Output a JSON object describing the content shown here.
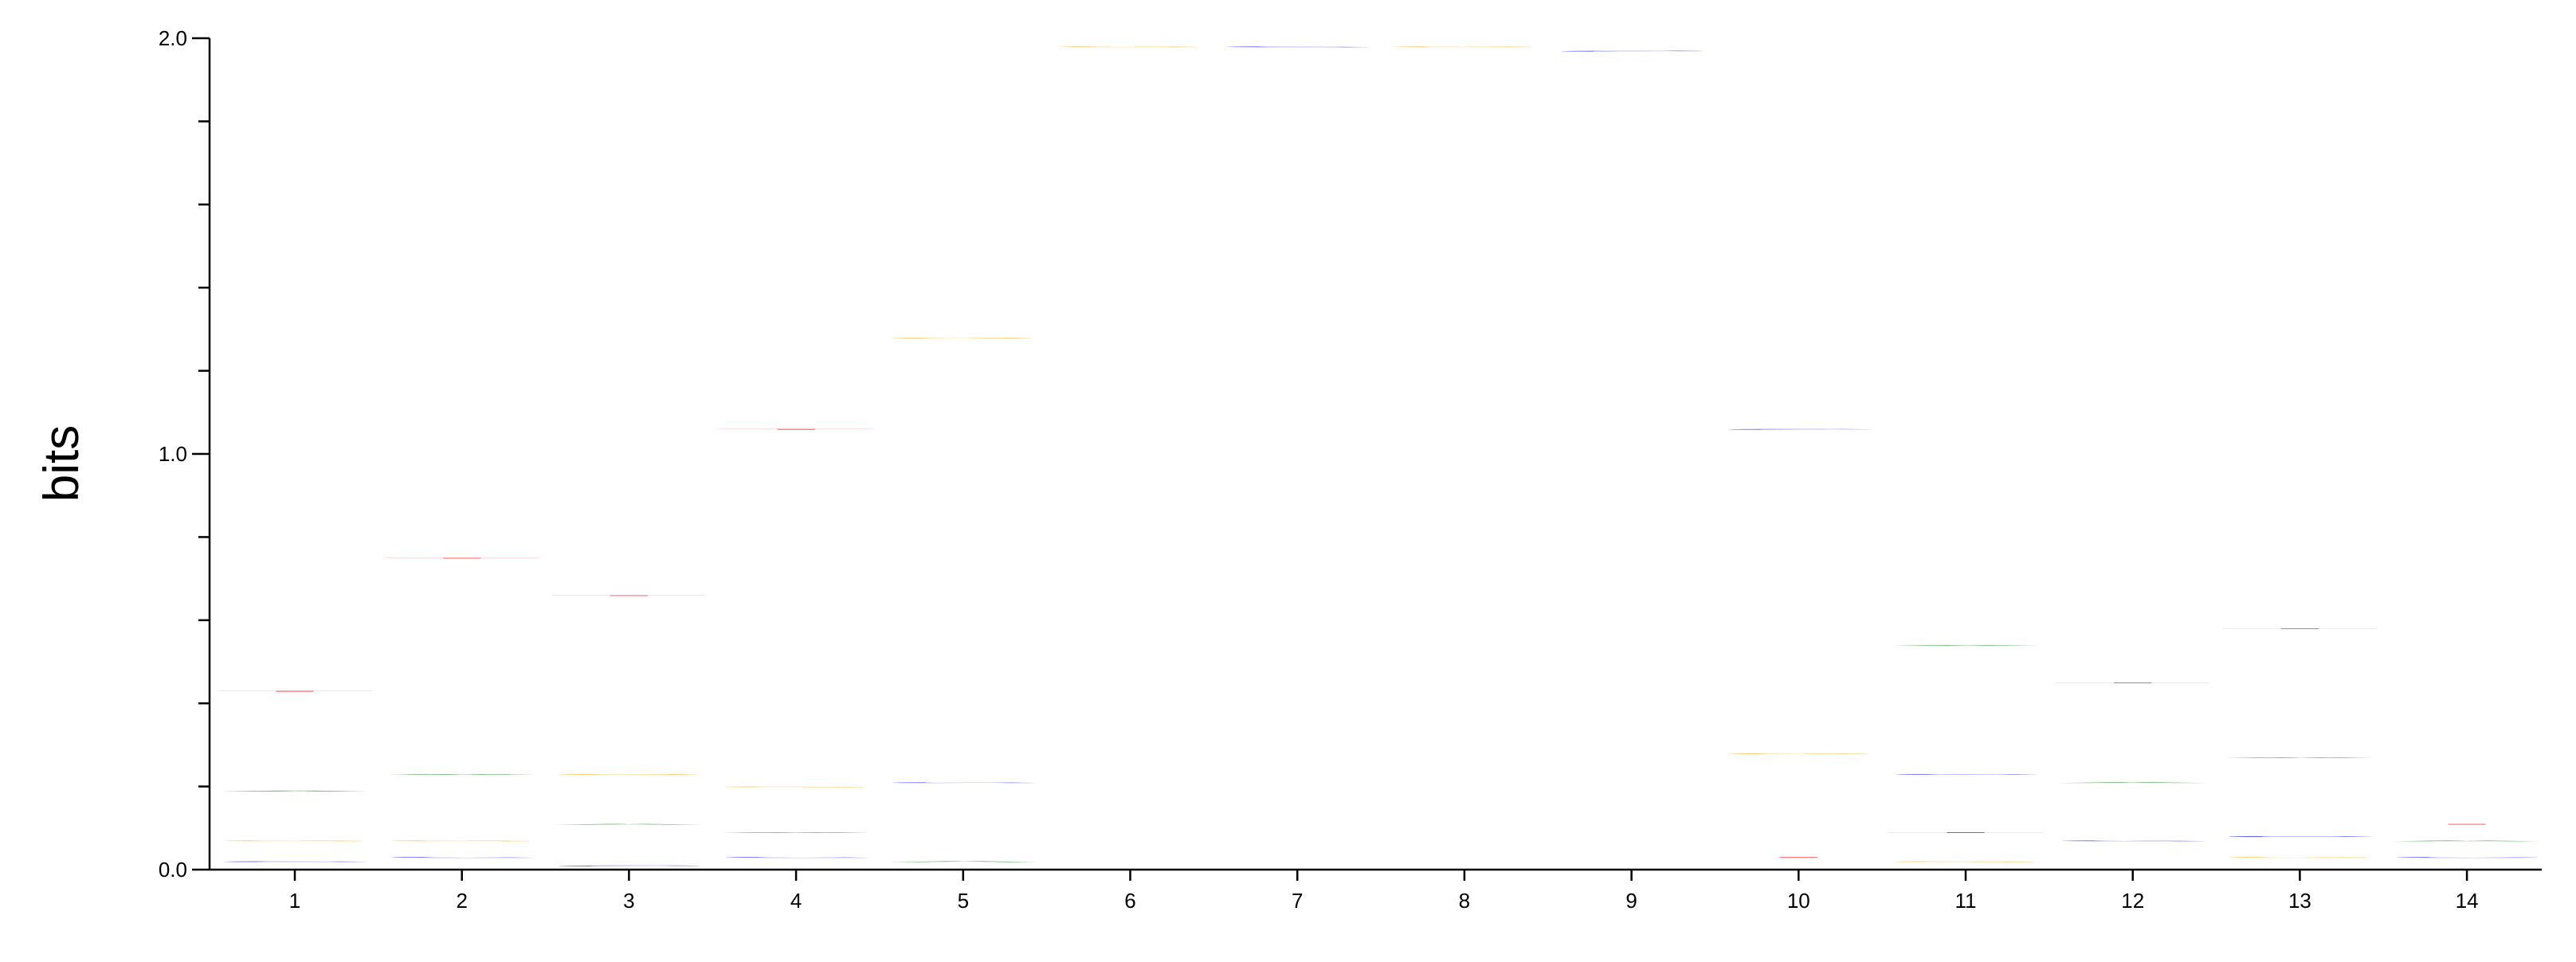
{
  "chart_data": {
    "type": "sequence-logo",
    "ylabel": "bits",
    "ylim": [
      0,
      2
    ],
    "yticks": [
      {
        "value": 0,
        "label": "0.0"
      },
      {
        "value": 1,
        "label": "1.0"
      },
      {
        "value": 2,
        "label": "2.0"
      }
    ],
    "colors": {
      "A": "#008000",
      "C": "#0000ff",
      "G": "#ffa500",
      "T": "#ff0000"
    },
    "positions": [
      {
        "label": "1",
        "letters": [
          {
            "base": "C",
            "bits": 0.02
          },
          {
            "base": "G",
            "bits": 0.05
          },
          {
            "base": "A",
            "bits": 0.12
          },
          {
            "base": "T",
            "bits": 0.24
          }
        ]
      },
      {
        "label": "2",
        "letters": [
          {
            "base": "C",
            "bits": 0.03
          },
          {
            "base": "G",
            "bits": 0.04
          },
          {
            "base": "A",
            "bits": 0.16
          },
          {
            "base": "T",
            "bits": 0.52
          }
        ]
      },
      {
        "label": "3",
        "letters": [
          {
            "base": "C",
            "bits": 0.01
          },
          {
            "base": "A",
            "bits": 0.1
          },
          {
            "base": "G",
            "bits": 0.12
          },
          {
            "base": "T",
            "bits": 0.43
          }
        ]
      },
      {
        "label": "4",
        "letters": [
          {
            "base": "C",
            "bits": 0.03
          },
          {
            "base": "A",
            "bits": 0.06
          },
          {
            "base": "G",
            "bits": 0.11
          },
          {
            "base": "T",
            "bits": 0.86
          }
        ]
      },
      {
        "label": "5",
        "letters": [
          {
            "base": "A",
            "bits": 0.02
          },
          {
            "base": "C",
            "bits": 0.19
          },
          {
            "base": "G",
            "bits": 1.07
          }
        ]
      },
      {
        "label": "6",
        "letters": [
          {
            "base": "G",
            "bits": 1.98
          }
        ]
      },
      {
        "label": "7",
        "letters": [
          {
            "base": "C",
            "bits": 1.98
          }
        ]
      },
      {
        "label": "8",
        "letters": [
          {
            "base": "G",
            "bits": 1.98
          }
        ]
      },
      {
        "label": "9",
        "letters": [
          {
            "base": "C",
            "bits": 1.97
          }
        ]
      },
      {
        "label": "10",
        "letters": [
          {
            "base": "T",
            "bits": 0.03
          },
          {
            "base": "G",
            "bits": 0.25
          },
          {
            "base": "C",
            "bits": 0.78
          }
        ]
      },
      {
        "label": "11",
        "letters": [
          {
            "base": "G",
            "bits": 0.02
          },
          {
            "base": "T",
            "bits": 0.07
          },
          {
            "base": "C",
            "bits": 0.14
          },
          {
            "base": "A",
            "bits": 0.31
          }
        ]
      },
      {
        "label": "12",
        "letters": [
          {
            "base": "C",
            "bits": 0.07
          },
          {
            "base": "A",
            "bits": 0.14
          },
          {
            "base": "T",
            "bits": 0.24
          }
        ]
      },
      {
        "label": "13",
        "letters": [
          {
            "base": "G",
            "bits": 0.03
          },
          {
            "base": "C",
            "bits": 0.05
          },
          {
            "base": "A",
            "bits": 0.19
          },
          {
            "base": "T",
            "bits": 0.31
          }
        ]
      },
      {
        "label": "14",
        "letters": [
          {
            "base": "C",
            "bits": 0.03
          },
          {
            "base": "A",
            "bits": 0.04
          },
          {
            "base": "T",
            "bits": 0.04
          }
        ]
      }
    ]
  }
}
